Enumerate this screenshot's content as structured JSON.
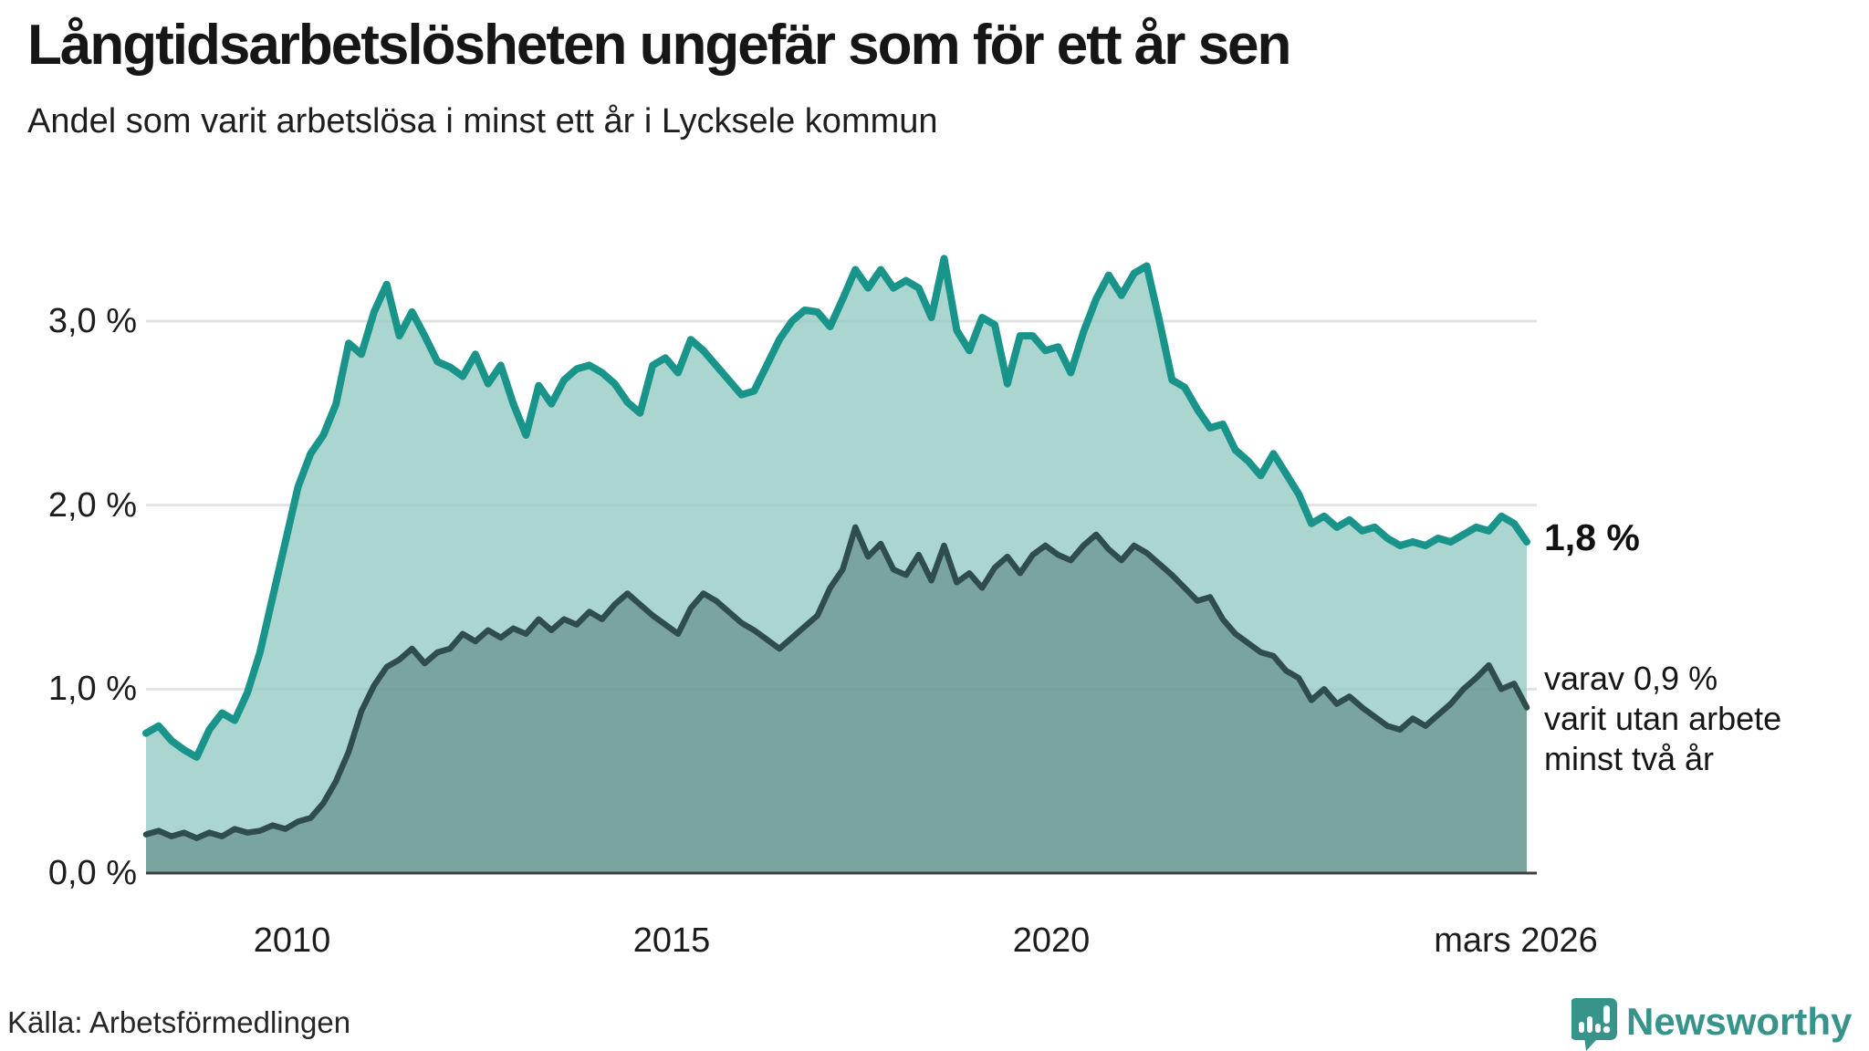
{
  "chart_data": {
    "type": "area",
    "title": "Långtidsarbetslösheten ungefär som för ett år sen",
    "subtitle": "Andel som varit arbetslösa i minst ett år i Lycksele kommun",
    "unit": "%",
    "x_start_year": 2008.0833,
    "x_step_years": 0.1666667,
    "x_axis": {
      "ticks": [
        {
          "year": 2010,
          "label": "2010"
        },
        {
          "year": 2015,
          "label": "2015"
        },
        {
          "year": 2020,
          "label": "2020"
        },
        {
          "year": 2026.25,
          "label": "mars 2026"
        }
      ]
    },
    "y_axis": {
      "range": [
        0,
        3.5
      ],
      "ticks": [
        {
          "value": 0,
          "label": "0,0 %"
        },
        {
          "value": 1,
          "label": "1,0 %"
        },
        {
          "value": 2,
          "label": "2,0 %"
        },
        {
          "value": 3,
          "label": "3,0 %"
        }
      ]
    },
    "grid": true,
    "legend_position": "none",
    "series": [
      {
        "name": "Andel arbetslösa minst ett år",
        "line_color": "#18948a",
        "fill_color": "rgba(150,204,196,0.8)",
        "line_width": 8,
        "values": [
          0.76,
          0.8,
          0.72,
          0.67,
          0.63,
          0.78,
          0.87,
          0.83,
          0.98,
          1.2,
          1.5,
          1.8,
          2.1,
          2.28,
          2.38,
          2.55,
          2.88,
          2.82,
          3.05,
          3.2,
          2.92,
          3.05,
          2.92,
          2.78,
          2.75,
          2.7,
          2.82,
          2.66,
          2.76,
          2.55,
          2.38,
          2.65,
          2.55,
          2.68,
          2.74,
          2.76,
          2.72,
          2.66,
          2.56,
          2.5,
          2.76,
          2.8,
          2.72,
          2.9,
          2.84,
          2.76,
          2.68,
          2.6,
          2.62,
          2.76,
          2.9,
          3.0,
          3.06,
          3.05,
          2.97,
          3.12,
          3.28,
          3.18,
          3.28,
          3.18,
          3.22,
          3.18,
          3.02,
          3.34,
          2.95,
          2.84,
          3.02,
          2.98,
          2.66,
          2.92,
          2.92,
          2.84,
          2.86,
          2.72,
          2.94,
          3.12,
          3.25,
          3.14,
          3.26,
          3.3,
          3.0,
          2.68,
          2.64,
          2.52,
          2.42,
          2.44,
          2.3,
          2.24,
          2.16,
          2.28,
          2.17,
          2.06,
          1.9,
          1.94,
          1.88,
          1.92,
          1.86,
          1.88,
          1.82,
          1.78,
          1.8,
          1.78,
          1.82,
          1.8,
          1.84,
          1.88,
          1.86,
          1.94,
          1.9,
          1.8
        ]
      },
      {
        "name": "varav arbetslösa minst två år",
        "line_color": "#2f4e4a",
        "fill_color": "rgba(62,107,99,0.45)",
        "line_width": 6.5,
        "values": [
          0.21,
          0.23,
          0.2,
          0.22,
          0.19,
          0.22,
          0.2,
          0.24,
          0.22,
          0.23,
          0.26,
          0.24,
          0.28,
          0.3,
          0.38,
          0.5,
          0.66,
          0.88,
          1.02,
          1.12,
          1.16,
          1.22,
          1.14,
          1.2,
          1.22,
          1.3,
          1.26,
          1.32,
          1.28,
          1.33,
          1.3,
          1.38,
          1.32,
          1.38,
          1.35,
          1.42,
          1.38,
          1.46,
          1.52,
          1.46,
          1.4,
          1.35,
          1.3,
          1.44,
          1.52,
          1.48,
          1.42,
          1.36,
          1.32,
          1.27,
          1.22,
          1.28,
          1.34,
          1.4,
          1.55,
          1.65,
          1.88,
          1.72,
          1.79,
          1.65,
          1.62,
          1.73,
          1.59,
          1.78,
          1.58,
          1.63,
          1.55,
          1.66,
          1.72,
          1.63,
          1.73,
          1.78,
          1.73,
          1.7,
          1.78,
          1.84,
          1.76,
          1.7,
          1.78,
          1.74,
          1.68,
          1.62,
          1.55,
          1.48,
          1.5,
          1.38,
          1.3,
          1.25,
          1.2,
          1.18,
          1.1,
          1.06,
          0.94,
          1.0,
          0.92,
          0.96,
          0.9,
          0.85,
          0.8,
          0.78,
          0.84,
          0.8,
          0.86,
          0.92,
          1.0,
          1.06,
          1.13,
          1.0,
          1.03,
          0.9
        ]
      }
    ],
    "annotations": {
      "end_value_label": "1,8 %",
      "end_sub_lines": [
        "varav 0,9 %",
        "varit utan arbete",
        "minst två år"
      ]
    },
    "gridline_color": "#e2e2e2",
    "baseline_color": "#404040"
  },
  "footer": {
    "source": "Källa: Arbetsförmedlingen",
    "logo_text": "Newsworthy",
    "logo_color": "#38948a"
  }
}
